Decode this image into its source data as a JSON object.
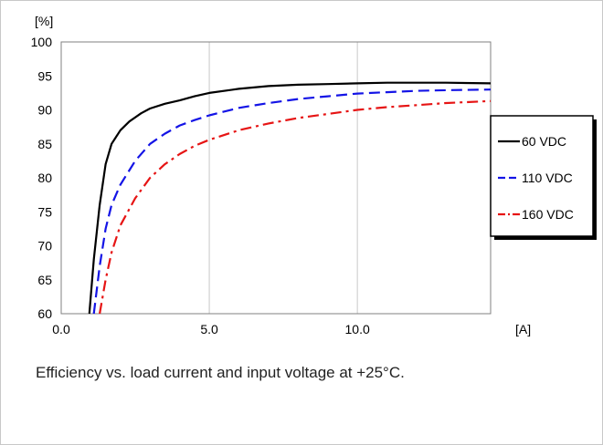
{
  "caption": "Efficiency vs. load current and input voltage at +25°C.",
  "chart_data": {
    "type": "line",
    "title": "",
    "xlabel": "[A]",
    "ylabel": "[%]",
    "xlim": [
      0,
      14.5
    ],
    "ylim": [
      60,
      100
    ],
    "x_ticks": [
      0,
      5,
      10
    ],
    "x_tick_labels": [
      "0.0",
      "5.0",
      "10.0"
    ],
    "y_ticks": [
      60,
      65,
      70,
      75,
      80,
      85,
      90,
      95,
      100
    ],
    "y_tick_labels": [
      "60",
      "65",
      "70",
      "75",
      "80",
      "85",
      "90",
      "95",
      "100"
    ],
    "grid": "vertical",
    "legend_position": "right",
    "series": [
      {
        "name": "60 VDC",
        "color": "#000000",
        "dash": "solid",
        "x": [
          0.95,
          1.1,
          1.3,
          1.5,
          1.7,
          2.0,
          2.3,
          2.7,
          3.0,
          3.5,
          4.0,
          4.5,
          5.0,
          6.0,
          7.0,
          8.0,
          9.0,
          10.0,
          11.0,
          12.0,
          13.0,
          14.5
        ],
        "y": [
          60,
          68,
          76,
          82,
          85,
          87,
          88.3,
          89.5,
          90.2,
          90.9,
          91.4,
          92.0,
          92.5,
          93.1,
          93.5,
          93.7,
          93.8,
          93.9,
          94.0,
          94.0,
          94.0,
          93.9
        ]
      },
      {
        "name": "110 VDC",
        "color": "#1414e6",
        "dash": "dashed",
        "x": [
          1.1,
          1.3,
          1.5,
          1.7,
          2.0,
          2.5,
          3.0,
          3.5,
          4.0,
          4.5,
          5.0,
          6.0,
          7.0,
          8.0,
          9.0,
          10.0,
          11.0,
          12.0,
          13.0,
          14.5
        ],
        "y": [
          60,
          67,
          72.5,
          76,
          79,
          82.5,
          85,
          86.5,
          87.7,
          88.5,
          89.2,
          90.3,
          91.0,
          91.6,
          92.0,
          92.4,
          92.6,
          92.8,
          92.9,
          93.0
        ]
      },
      {
        "name": "160 VDC",
        "color": "#e61414",
        "dash": "dash-dot",
        "x": [
          1.3,
          1.5,
          1.7,
          2.0,
          2.5,
          3.0,
          3.5,
          4.0,
          4.5,
          5.0,
          6.0,
          7.0,
          8.0,
          9.0,
          10.0,
          11.0,
          12.0,
          13.0,
          14.5
        ],
        "y": [
          60,
          65,
          69,
          73,
          77,
          80,
          82,
          83.5,
          84.7,
          85.6,
          87.0,
          88.0,
          88.8,
          89.4,
          90.0,
          90.4,
          90.7,
          91.0,
          91.3
        ]
      }
    ]
  }
}
